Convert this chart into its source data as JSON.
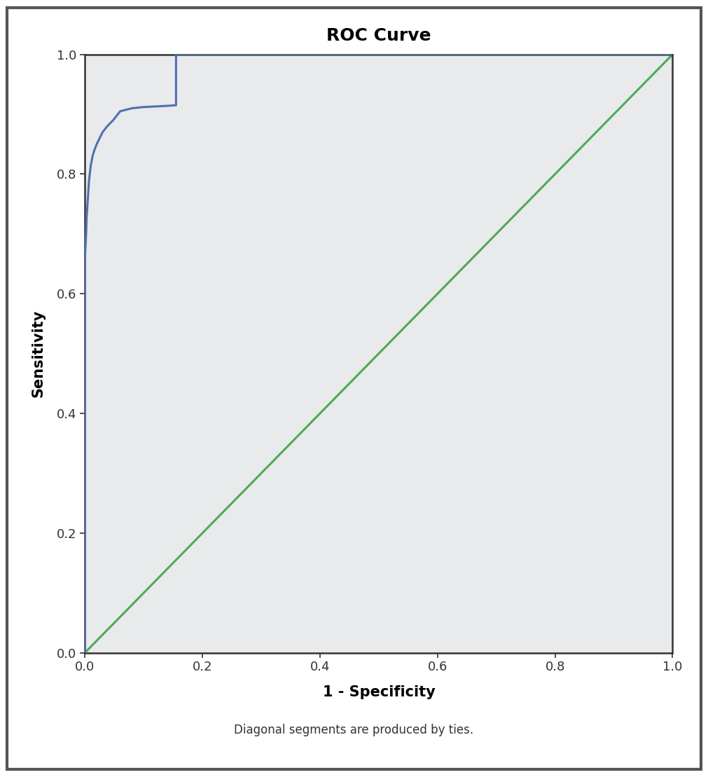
{
  "title": "ROC Curve",
  "xlabel": "1 - Specificity",
  "ylabel": "Sensitivity",
  "footnote": "Diagonal segments are produced by ties.",
  "xlim": [
    0.0,
    1.0
  ],
  "ylim": [
    0.0,
    1.0
  ],
  "xticks": [
    0.0,
    0.2,
    0.4,
    0.6,
    0.8,
    1.0
  ],
  "yticks": [
    0.0,
    0.2,
    0.4,
    0.6,
    0.8,
    1.0
  ],
  "outer_bg_color": "#ffffff",
  "plot_bg_color": "#e8eaec",
  "border_color": "#555555",
  "roc_color": "#5070b0",
  "diagonal_color": "#50aa50",
  "roc_linewidth": 2.2,
  "diagonal_linewidth": 2.2,
  "title_fontsize": 18,
  "axis_label_fontsize": 15,
  "tick_fontsize": 13,
  "footnote_fontsize": 12,
  "roc_x": [
    0.0,
    0.0,
    0.0,
    0.0,
    0.0,
    0.0,
    0.0,
    0.0,
    0.002,
    0.003,
    0.005,
    0.007,
    0.01,
    0.013,
    0.016,
    0.02,
    0.025,
    0.03,
    0.038,
    0.048,
    0.06,
    0.08,
    0.1,
    0.12,
    0.14,
    0.155,
    0.155,
    1.0
  ],
  "roc_y": [
    0.0,
    0.5,
    0.52,
    0.545,
    0.57,
    0.6,
    0.63,
    0.66,
    0.7,
    0.73,
    0.76,
    0.79,
    0.815,
    0.83,
    0.84,
    0.85,
    0.86,
    0.87,
    0.88,
    0.89,
    0.905,
    0.91,
    0.912,
    0.913,
    0.914,
    0.915,
    1.0,
    1.0
  ]
}
